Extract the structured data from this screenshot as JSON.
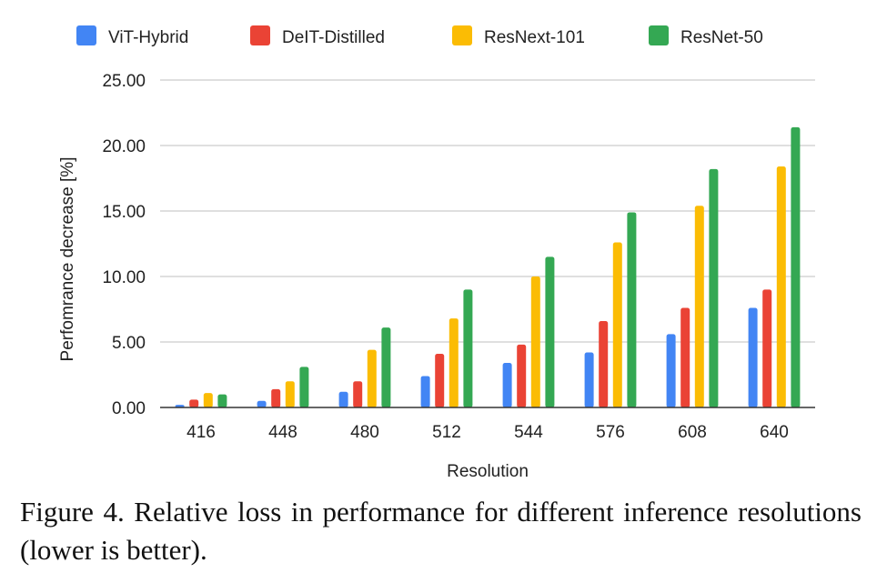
{
  "chart_data": {
    "type": "bar",
    "title": "",
    "xlabel": "Resolution",
    "ylabel": "Perfomrance decrease [%]",
    "ylim": [
      0,
      25
    ],
    "yticks": [
      "0.00",
      "5.00",
      "10.00",
      "15.00",
      "20.00",
      "25.00"
    ],
    "categories": [
      "416",
      "448",
      "480",
      "512",
      "544",
      "576",
      "608",
      "640"
    ],
    "grid": true,
    "legend_position": "top",
    "series": [
      {
        "name": "ViT-Hybrid",
        "color": "#4285F4",
        "values": [
          0.2,
          0.5,
          1.2,
          2.4,
          3.4,
          4.2,
          5.6,
          7.6
        ]
      },
      {
        "name": "DeIT-Distilled",
        "color": "#EA4335",
        "values": [
          0.6,
          1.4,
          2.0,
          4.1,
          4.8,
          6.6,
          7.6,
          9.0
        ]
      },
      {
        "name": "ResNext-101",
        "color": "#FBBC04",
        "values": [
          1.1,
          2.0,
          4.4,
          6.8,
          10.0,
          12.6,
          15.4,
          18.4
        ]
      },
      {
        "name": "ResNet-50",
        "color": "#34A853",
        "values": [
          1.0,
          3.1,
          6.1,
          9.0,
          11.5,
          14.9,
          18.2,
          21.4
        ]
      }
    ]
  },
  "caption": "Figure 4. Relative loss in performance for different inference resolutions (lower is better)."
}
